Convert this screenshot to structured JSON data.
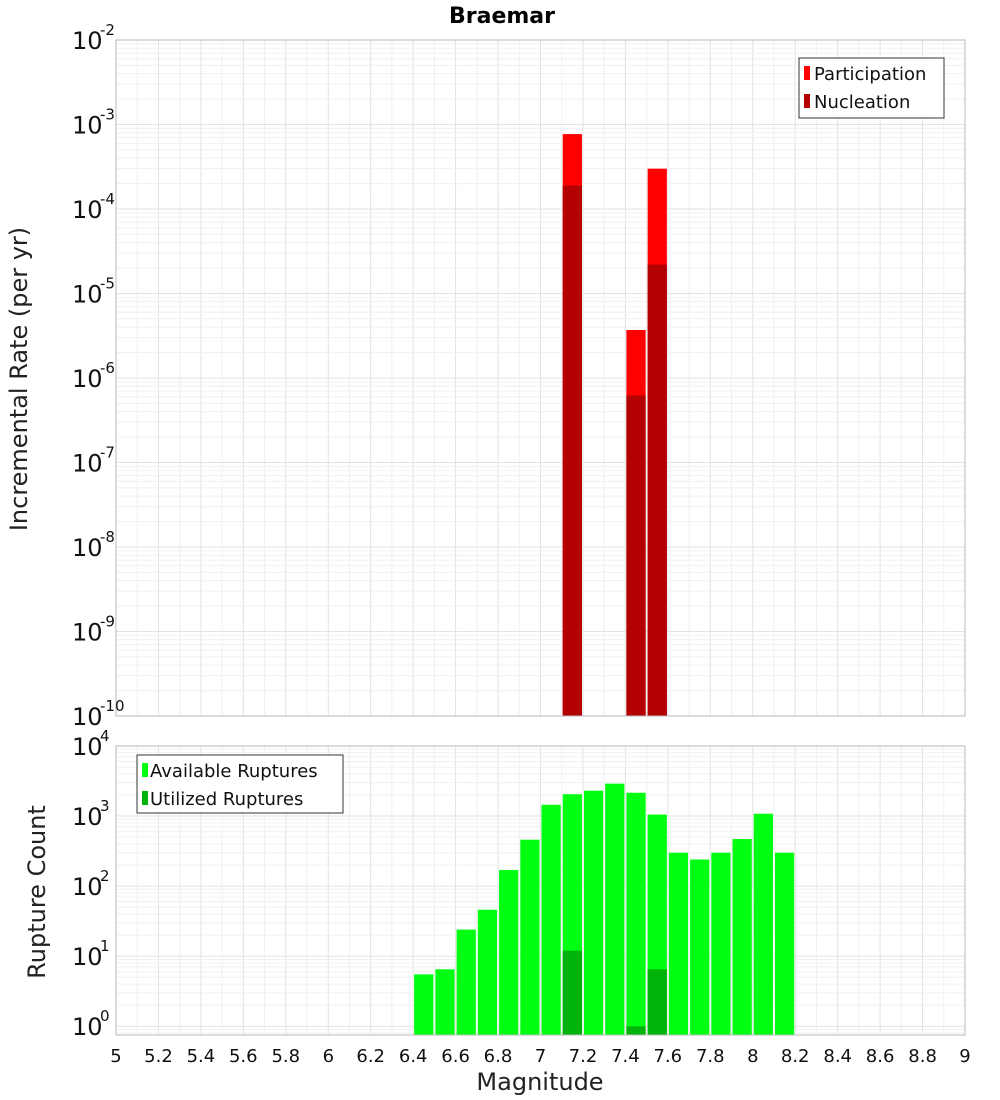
{
  "chart_data": [
    {
      "type": "bar",
      "title": "Braemar",
      "xlabel": "",
      "ylabel": "Incremental Rate (per yr)",
      "yscale": "log",
      "ylim": [
        1e-10,
        0.01
      ],
      "xlim": [
        5,
        9
      ],
      "grid": true,
      "legend_position": "top-right",
      "ytick_exponents": [
        "-10",
        "-9",
        "-8",
        "-7",
        "-6",
        "-5",
        "-4",
        "-3",
        "-2"
      ],
      "x": [
        7.15,
        7.45,
        7.55
      ],
      "series": [
        {
          "name": "Participation",
          "color": "#ff0000",
          "values": [
            0.00077,
            3.7e-06,
            0.0003
          ]
        },
        {
          "name": "Nucleation",
          "color": "#b30000",
          "values": [
            0.00019,
            6.2e-07,
            2.2e-05
          ]
        }
      ]
    },
    {
      "type": "bar",
      "title": "",
      "xlabel": "Magnitude",
      "ylabel": "Rupture Count",
      "yscale": "log",
      "ylim": [
        0.75,
        10000
      ],
      "xlim": [
        5,
        9
      ],
      "grid": true,
      "legend_position": "top-left",
      "ytick_exponents": [
        "0",
        "1",
        "2",
        "3",
        "4"
      ],
      "xticks": [
        "5",
        "5.2",
        "5.4",
        "5.6",
        "5.8",
        "6",
        "6.2",
        "6.4",
        "6.6",
        "6.8",
        "7",
        "7.2",
        "7.4",
        "7.6",
        "7.8",
        "8",
        "8.2",
        "8.4",
        "8.6",
        "8.8",
        "9"
      ],
      "x": [
        6.45,
        6.55,
        6.65,
        6.75,
        6.85,
        6.95,
        7.05,
        7.15,
        7.25,
        7.35,
        7.45,
        7.55,
        7.65,
        7.75,
        7.85,
        7.95,
        8.05,
        8.15
      ],
      "series": [
        {
          "name": "Available Ruptures",
          "color": "#00ff11",
          "values": [
            5.5,
            6.5,
            24,
            46,
            170,
            460,
            1450,
            2050,
            2300,
            2900,
            2150,
            1050,
            300,
            240,
            300,
            470,
            1080,
            300
          ]
        },
        {
          "name": "Utilized Ruptures",
          "color": "#00b30b",
          "values": [
            0,
            0,
            0,
            0,
            0,
            0,
            0,
            12,
            0,
            0,
            1,
            6.5,
            0,
            0,
            0,
            0,
            0,
            0
          ]
        }
      ]
    }
  ]
}
